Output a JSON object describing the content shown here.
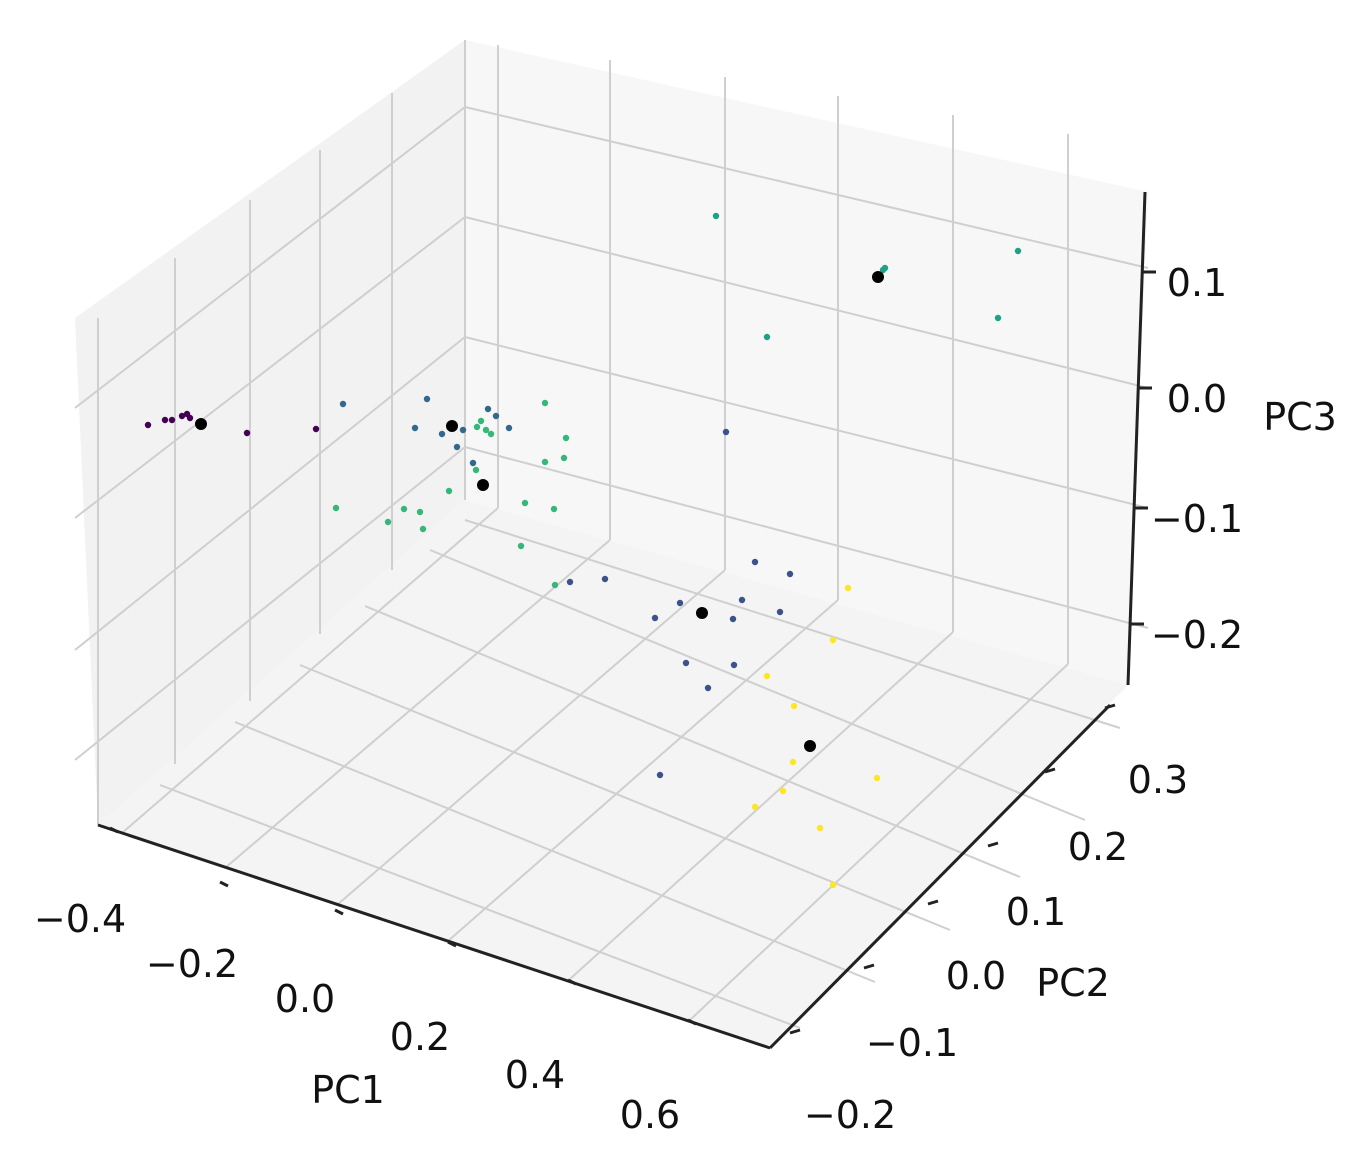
{
  "chart_data": {
    "type": "scatter",
    "title": "",
    "projection": "3d",
    "grid": true,
    "xlabel": "PC1",
    "ylabel": "PC2",
    "zlabel": "PC3",
    "xticks": [
      "−0.4",
      "−0.2",
      "0.0",
      "0.2",
      "0.4",
      "0.6"
    ],
    "yticks": [
      "−0.2",
      "−0.1",
      "0.0",
      "0.1",
      "0.2",
      "0.3"
    ],
    "zticks": [
      "−0.2",
      "−0.1",
      "0.0",
      "0.1"
    ],
    "series": [
      {
        "color": "#440154",
        "points": [
          [
            148,
            425
          ],
          [
            165,
            420
          ],
          [
            172,
            420
          ],
          [
            182,
            416
          ],
          [
            187,
            414
          ],
          [
            190,
            418
          ],
          [
            247,
            433
          ],
          [
            316,
            429
          ]
        ]
      },
      {
        "color": "#31688e",
        "points": [
          [
            343,
            404
          ],
          [
            427,
            399
          ],
          [
            415,
            428
          ],
          [
            442,
            434
          ],
          [
            457,
            447
          ],
          [
            463,
            430
          ],
          [
            473,
            463
          ],
          [
            488,
            409
          ],
          [
            496,
            416
          ],
          [
            509,
            428
          ]
        ]
      },
      {
        "color": "#35b779",
        "points": [
          [
            336,
            508
          ],
          [
            388,
            522
          ],
          [
            404,
            509
          ],
          [
            420,
            512
          ],
          [
            423,
            529
          ],
          [
            449,
            491
          ],
          [
            477,
            427
          ],
          [
            481,
            421
          ],
          [
            486,
            430
          ],
          [
            491,
            434
          ],
          [
            476,
            470
          ],
          [
            525,
            503
          ],
          [
            521,
            546
          ],
          [
            545,
            403
          ],
          [
            545,
            462
          ],
          [
            554,
            509
          ],
          [
            564,
            458
          ],
          [
            566,
            438
          ],
          [
            555,
            585
          ]
        ]
      },
      {
        "color": "#3b528b",
        "points": [
          [
            570,
            582
          ],
          [
            605,
            579
          ],
          [
            655,
            618
          ],
          [
            680,
            603
          ],
          [
            686,
            663
          ],
          [
            708,
            688
          ],
          [
            726,
            432
          ],
          [
            733,
            619
          ],
          [
            734,
            665
          ],
          [
            742,
            600
          ],
          [
            755,
            562
          ],
          [
            780,
            612
          ],
          [
            790,
            574
          ],
          [
            660,
            775
          ]
        ]
      },
      {
        "color": "#1fa187",
        "points": [
          [
            716,
            216
          ],
          [
            767,
            337
          ],
          [
            883,
            270
          ],
          [
            885,
            268
          ],
          [
            1018,
            251
          ],
          [
            998,
            318
          ]
        ]
      },
      {
        "color": "#fde725",
        "points": [
          [
            848,
            588
          ],
          [
            833,
            640
          ],
          [
            767,
            676
          ],
          [
            794,
            706
          ],
          [
            793,
            762
          ],
          [
            783,
            791
          ],
          [
            755,
            807
          ],
          [
            877,
            778
          ],
          [
            820,
            828
          ],
          [
            833,
            885
          ]
        ]
      },
      {
        "color": "#000000",
        "points": [
          [
            201,
            424
          ],
          [
            452,
            426
          ],
          [
            483,
            485
          ],
          [
            702,
            613
          ],
          [
            878,
            277
          ],
          [
            810,
            746
          ]
        ]
      }
    ]
  }
}
